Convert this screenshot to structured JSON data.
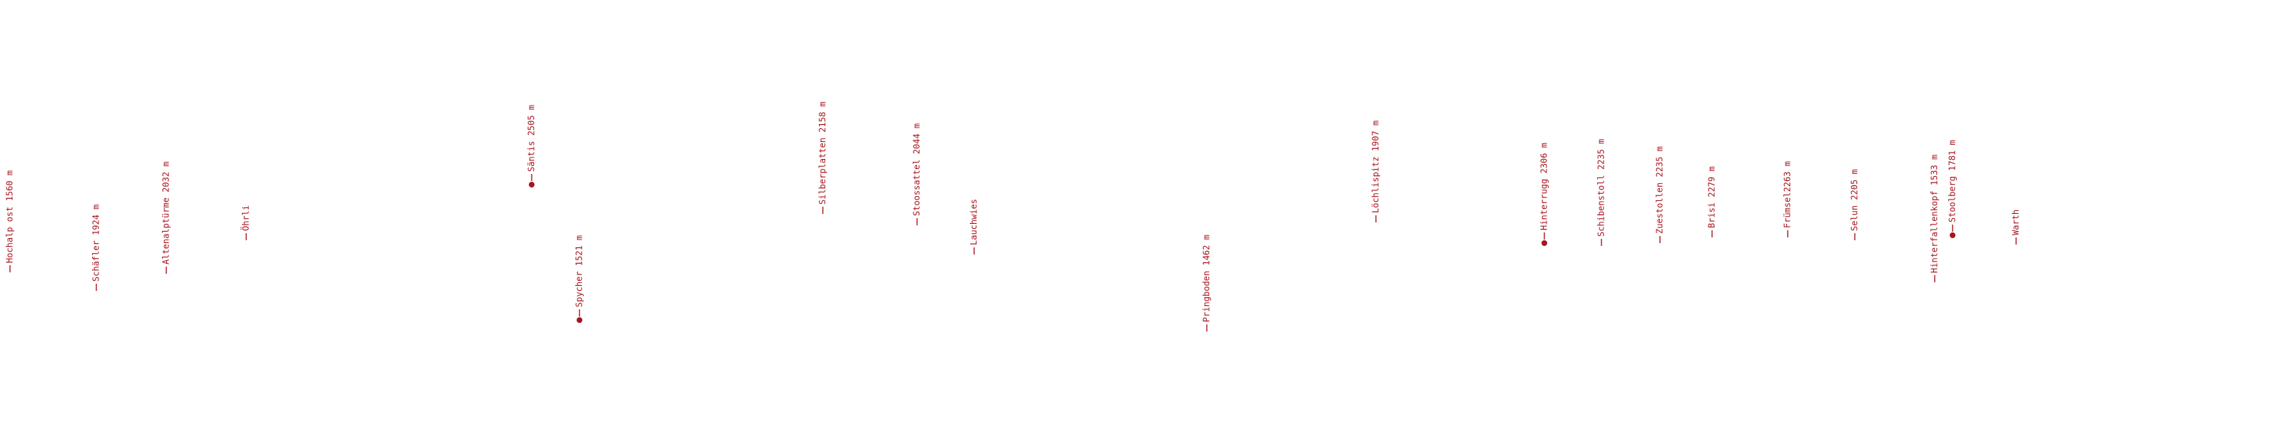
{
  "labels": [
    "Hochalp ost 1560 m",
    "Schäfler 1924 m",
    "Altenalptürme 2032 m",
    "Öhrli",
    "Säntis 2505 m",
    "Spycher 1521 m",
    "Silberplatten 2158 m",
    "Stoossattel 2044 m",
    "Lauchwies",
    "Pringboden 1462 m",
    "Löchlispitz 1907 m",
    "Hinterrugg 2306 m",
    "Schibenstoll 2235 m",
    "Zuestollen 2235 m",
    "Brisi 2279 m",
    "Frümsel2263 m",
    "Selun 2205 m",
    "Hinterfallenkopf 1533 m",
    "Stoolberg 1781 m",
    "Warth"
  ]
}
